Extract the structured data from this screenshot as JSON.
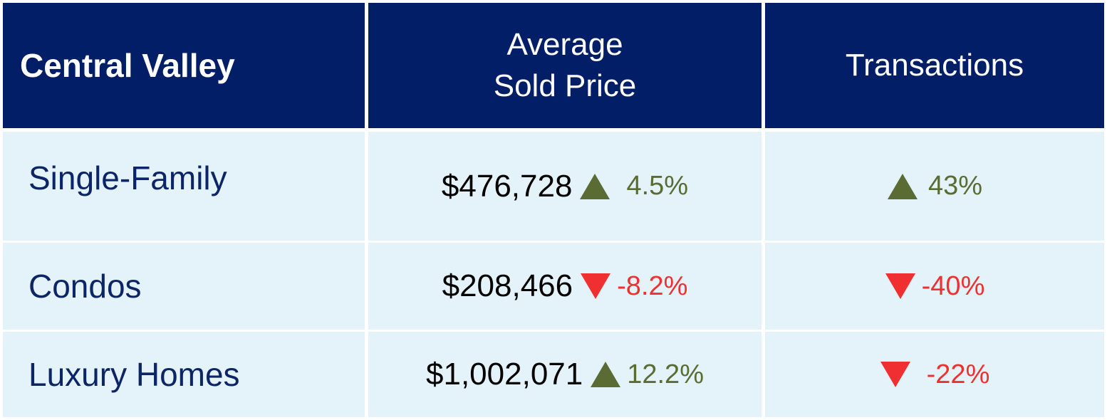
{
  "header": {
    "title": "Central Valley",
    "columns": [
      "Average Sold Price",
      "Transactions"
    ]
  },
  "rows": [
    {
      "label": "Single-Family",
      "price": "$476,728",
      "price_change": "4.5%",
      "transactions_change": "43%"
    },
    {
      "label": "Condos",
      "price": "$208,466",
      "price_change": "-8.2%",
      "transactions_change": "-40%"
    },
    {
      "label": "Luxury Homes",
      "price": "$1,002,071",
      "price_change": "12.2%",
      "transactions_change": "-22%"
    }
  ]
}
